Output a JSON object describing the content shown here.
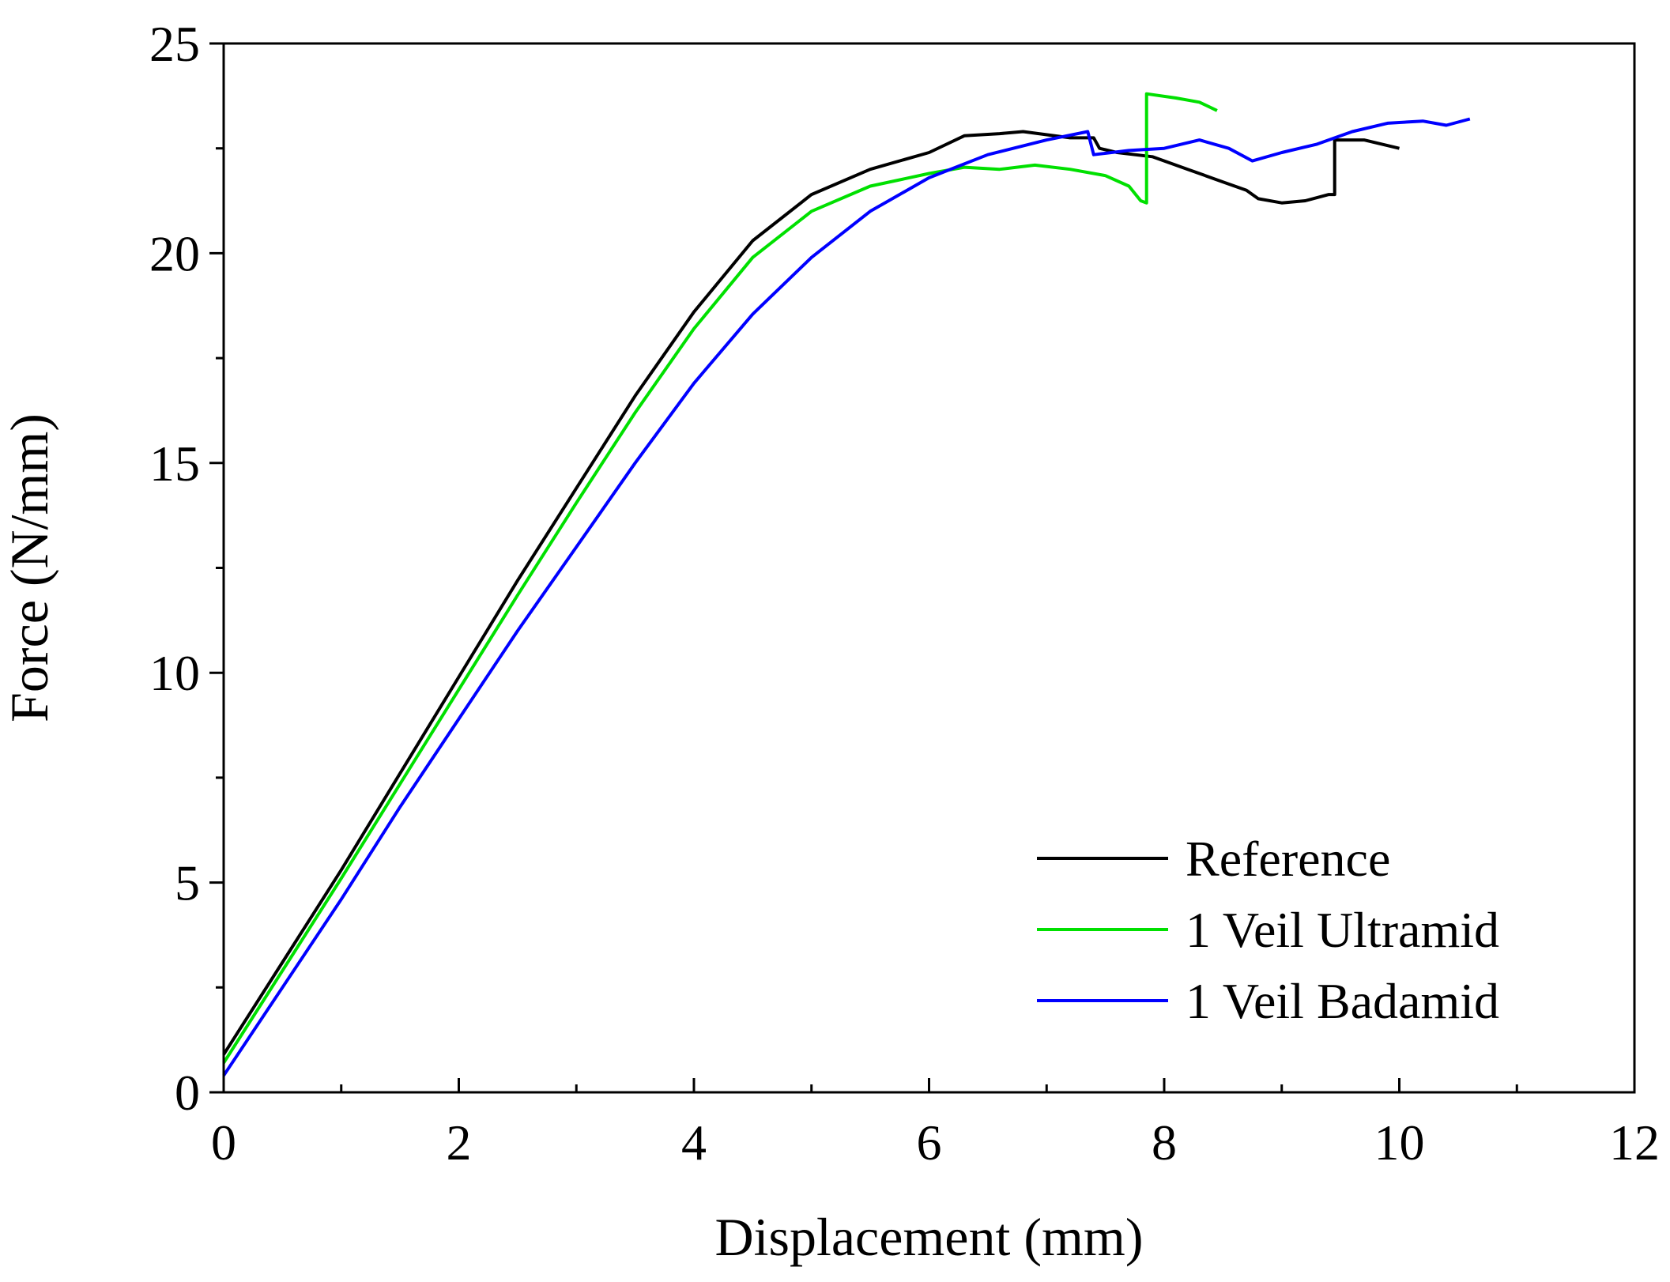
{
  "chart_data": {
    "type": "line",
    "title": "",
    "xlabel": "Displacement (mm)",
    "ylabel": "Force (N/mm)",
    "xlim": [
      0,
      12
    ],
    "ylim": [
      0,
      25
    ],
    "xticks": [
      0,
      2,
      4,
      6,
      8,
      10,
      12
    ],
    "yticks": [
      0,
      5,
      10,
      15,
      20,
      25
    ],
    "xtick_labels": [
      "0",
      "2",
      "4",
      "6",
      "8",
      "10",
      "12"
    ],
    "ytick_labels": [
      "0",
      "5",
      "10",
      "15",
      "20",
      "25"
    ],
    "x_minor_step": 1,
    "grid": false,
    "legend_position": "bottom-right",
    "series": [
      {
        "name": "Reference",
        "color": "#000000",
        "points": [
          [
            0,
            0.9
          ],
          [
            0.5,
            3.1
          ],
          [
            1,
            5.3
          ],
          [
            1.5,
            7.6
          ],
          [
            2,
            9.9
          ],
          [
            2.5,
            12.2
          ],
          [
            3,
            14.4
          ],
          [
            3.5,
            16.6
          ],
          [
            4,
            18.6
          ],
          [
            4.5,
            20.3
          ],
          [
            5,
            21.4
          ],
          [
            5.5,
            22.0
          ],
          [
            6,
            22.4
          ],
          [
            6.3,
            22.8
          ],
          [
            6.6,
            22.85
          ],
          [
            6.8,
            22.9
          ],
          [
            7.2,
            22.75
          ],
          [
            7.4,
            22.75
          ],
          [
            7.45,
            22.5
          ],
          [
            7.6,
            22.4
          ],
          [
            7.9,
            22.3
          ],
          [
            8.2,
            22.0
          ],
          [
            8.5,
            21.7
          ],
          [
            8.7,
            21.5
          ],
          [
            8.8,
            21.3
          ],
          [
            9.0,
            21.2
          ],
          [
            9.2,
            21.25
          ],
          [
            9.4,
            21.4
          ],
          [
            9.45,
            21.4
          ],
          [
            9.45,
            22.7
          ],
          [
            9.7,
            22.7
          ],
          [
            10.0,
            22.5
          ]
        ]
      },
      {
        "name": "1 Veil Ultramid",
        "color": "#00e000",
        "points": [
          [
            0,
            0.7
          ],
          [
            0.5,
            2.9
          ],
          [
            1,
            5.1
          ],
          [
            1.5,
            7.35
          ],
          [
            2,
            9.6
          ],
          [
            2.5,
            11.85
          ],
          [
            3,
            14.05
          ],
          [
            3.5,
            16.2
          ],
          [
            4,
            18.2
          ],
          [
            4.5,
            19.9
          ],
          [
            5,
            21.0
          ],
          [
            5.5,
            21.6
          ],
          [
            6,
            21.9
          ],
          [
            6.3,
            22.05
          ],
          [
            6.6,
            22.0
          ],
          [
            6.9,
            22.1
          ],
          [
            7.2,
            22.0
          ],
          [
            7.5,
            21.85
          ],
          [
            7.7,
            21.6
          ],
          [
            7.8,
            21.25
          ],
          [
            7.85,
            21.2
          ],
          [
            7.85,
            23.8
          ],
          [
            8.1,
            23.7
          ],
          [
            8.3,
            23.6
          ],
          [
            8.45,
            23.4
          ]
        ]
      },
      {
        "name": "1 Veil Badamid",
        "color": "#0000ff",
        "points": [
          [
            0,
            0.4
          ],
          [
            0.5,
            2.5
          ],
          [
            1,
            4.6
          ],
          [
            1.5,
            6.8
          ],
          [
            2,
            8.9
          ],
          [
            2.5,
            11.0
          ],
          [
            3,
            13.0
          ],
          [
            3.5,
            15.0
          ],
          [
            4,
            16.9
          ],
          [
            4.5,
            18.55
          ],
          [
            5,
            19.9
          ],
          [
            5.5,
            21.0
          ],
          [
            6,
            21.8
          ],
          [
            6.5,
            22.35
          ],
          [
            7,
            22.7
          ],
          [
            7.35,
            22.9
          ],
          [
            7.4,
            22.35
          ],
          [
            7.7,
            22.45
          ],
          [
            8,
            22.5
          ],
          [
            8.3,
            22.7
          ],
          [
            8.55,
            22.5
          ],
          [
            8.75,
            22.2
          ],
          [
            9.0,
            22.4
          ],
          [
            9.3,
            22.6
          ],
          [
            9.6,
            22.9
          ],
          [
            9.9,
            23.1
          ],
          [
            10.2,
            23.15
          ],
          [
            10.4,
            23.05
          ],
          [
            10.6,
            23.2
          ]
        ]
      }
    ]
  }
}
